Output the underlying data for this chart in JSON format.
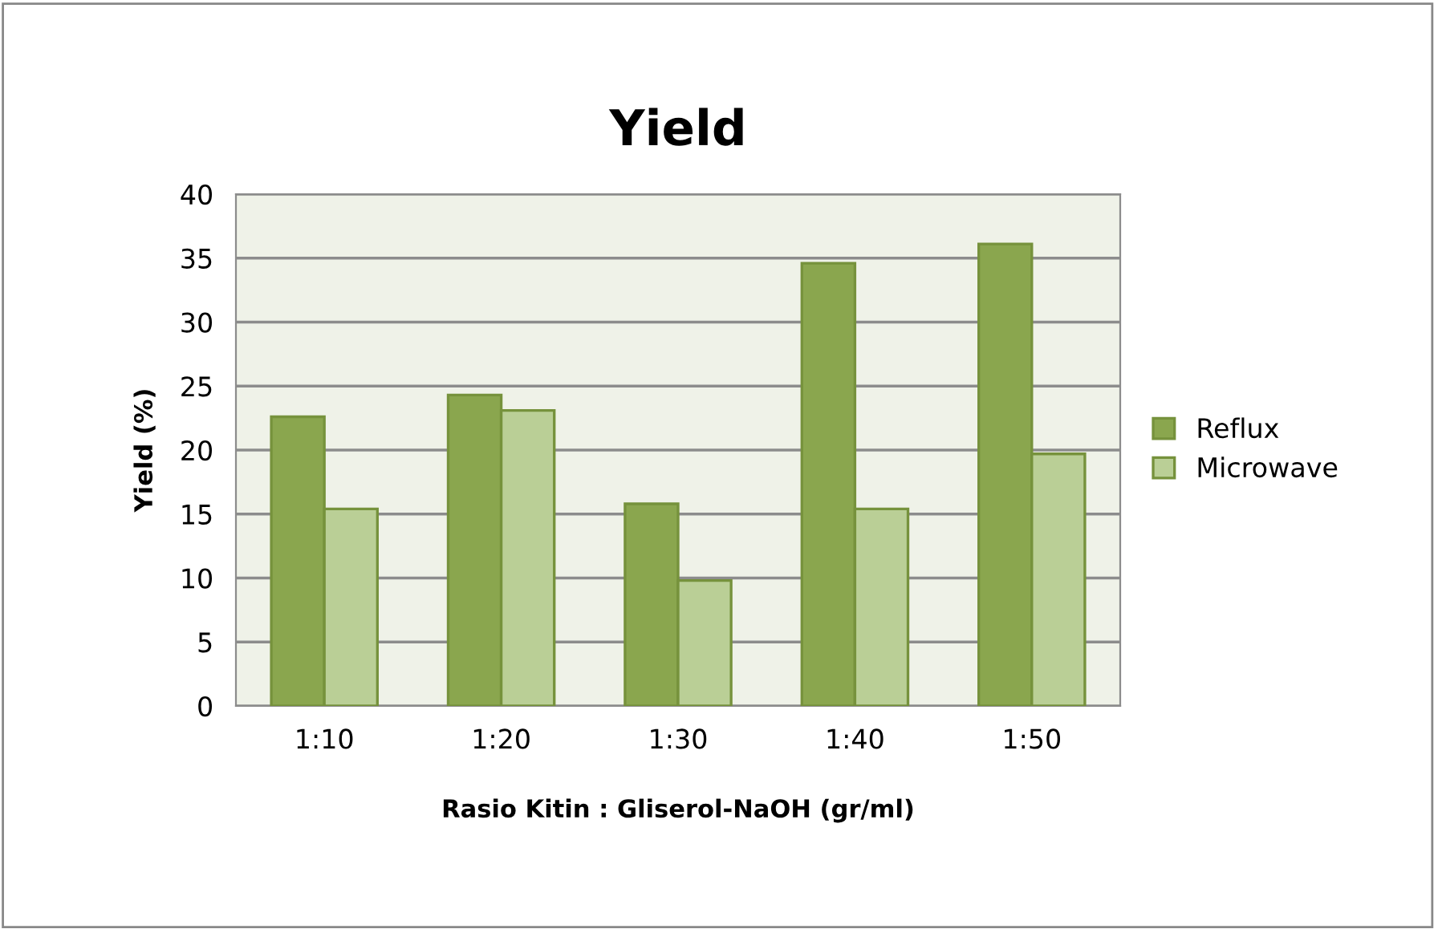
{
  "chart_data": {
    "type": "bar",
    "title": "Yield",
    "xlabel": "Rasio Kitin : Gliserol-NaOH (gr/ml)",
    "ylabel": "Yield (%)",
    "categories": [
      "1:10",
      "1:20",
      "1:30",
      "1:40",
      "1:50"
    ],
    "series": [
      {
        "name": "Reflux",
        "color": "#8aa64e",
        "values": [
          22.6,
          24.3,
          15.8,
          34.6,
          36.1
        ]
      },
      {
        "name": "Microwave",
        "color": "#bacf96",
        "values": [
          15.4,
          23.1,
          9.8,
          15.4,
          19.7
        ]
      }
    ],
    "ylim": [
      0,
      40
    ],
    "yticks": [
      0,
      5,
      10,
      15,
      20,
      25,
      30,
      35,
      40
    ],
    "grid": "y",
    "legend": "right"
  }
}
